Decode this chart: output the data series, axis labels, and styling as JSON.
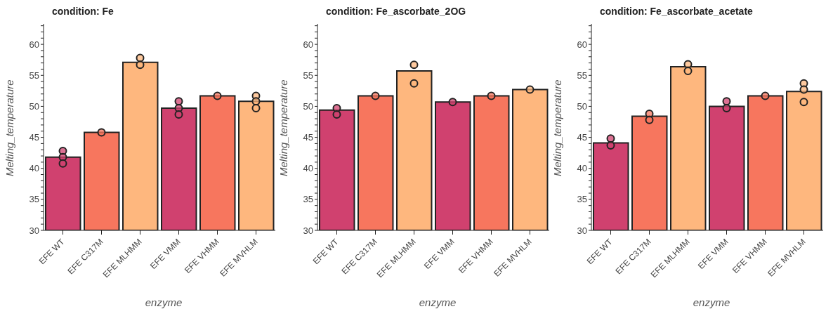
{
  "chart_data": [
    {
      "type": "bar",
      "title": "condition: Fe",
      "xlabel": "enzyme",
      "ylabel": "Melting_temperature",
      "categories": [
        "EFE WT",
        "EFE C317M",
        "EFE MLHMM",
        "EFE VMM",
        "EFE VHMM",
        "EFE MVHLM"
      ],
      "ylim": [
        30,
        63.3
      ],
      "yticks": [
        30,
        {
          "value": 31,
          "label": null
        },
        {
          "value": 32,
          "label": null
        },
        {
          "value": 33,
          "label": null
        },
        {
          "value": 34,
          "label": null
        },
        35,
        {
          "value": 36,
          "label": null
        },
        {
          "value": 37,
          "label": null
        },
        {
          "value": 38,
          "label": null
        },
        {
          "value": 39,
          "label": null
        },
        40,
        {
          "value": 41,
          "label": null
        },
        {
          "value": 42,
          "label": null
        },
        {
          "value": 43,
          "label": null
        },
        {
          "value": 44,
          "label": null
        },
        45,
        {
          "value": 46,
          "label": null
        },
        {
          "value": 47,
          "label": null
        },
        {
          "value": 48,
          "label": null
        },
        {
          "value": 49,
          "label": null
        },
        50,
        {
          "value": 51,
          "label": null
        },
        {
          "value": 52,
          "label": null
        },
        {
          "value": 53,
          "label": null
        },
        {
          "value": 54,
          "label": null
        },
        55,
        {
          "value": 56,
          "label": null
        },
        {
          "value": 57,
          "label": null
        },
        {
          "value": 58,
          "label": null
        },
        {
          "value": 59,
          "label": null
        },
        60,
        {
          "value": 61,
          "label": null
        },
        {
          "value": 62,
          "label": null
        },
        {
          "value": 63,
          "label": null
        }
      ],
      "series": [
        {
          "values": [
            41.8,
            45.8,
            57.1,
            49.7,
            51.7,
            50.8
          ],
          "colors": [
            "#d0416f",
            "#f7765e",
            "#feb77e",
            "#d0416f",
            "#f7765e",
            "#feb77e"
          ]
        },
        {
          "type": "scatter",
          "x": [
            "EFE WT",
            "EFE WT",
            "EFE WT",
            "EFE C317M",
            "EFE MLHMM",
            "EFE MLHMM",
            "EFE VMM",
            "EFE VMM",
            "EFE VMM",
            "EFE VHMM",
            "EFE MVHLM",
            "EFE MVHLM",
            "EFE MVHLM"
          ],
          "values": [
            42.8,
            41.8,
            40.8,
            45.8,
            57.8,
            56.7,
            50.8,
            49.7,
            48.7,
            51.7,
            51.7,
            50.8,
            49.7
          ],
          "colors": [
            "#d0416f",
            "#d0416f",
            "#d0416f",
            "#f7765e",
            "#feb77e",
            "#feb77e",
            "#d0416f",
            "#d0416f",
            "#d0416f",
            "#f7765e",
            "#feb77e",
            "#feb77e",
            "#feb77e"
          ]
        }
      ]
    },
    {
      "type": "bar",
      "title": "condition: Fe_ascorbate_2OG",
      "xlabel": "enzyme",
      "ylabel": "Melting_temperature",
      "categories": [
        "EFE WT",
        "EFE C317M",
        "EFE MLHMM",
        "EFE VMM",
        "EFE VHMM",
        "EFE MVHLM"
      ],
      "ylim": [
        30,
        63.3
      ],
      "yticks": [
        30,
        {
          "value": 31,
          "label": null
        },
        {
          "value": 32,
          "label": null
        },
        {
          "value": 33,
          "label": null
        },
        {
          "value": 34,
          "label": null
        },
        35,
        {
          "value": 36,
          "label": null
        },
        {
          "value": 37,
          "label": null
        },
        {
          "value": 38,
          "label": null
        },
        {
          "value": 39,
          "label": null
        },
        40,
        {
          "value": 41,
          "label": null
        },
        {
          "value": 42,
          "label": null
        },
        {
          "value": 43,
          "label": null
        },
        {
          "value": 44,
          "label": null
        },
        45,
        {
          "value": 46,
          "label": null
        },
        {
          "value": 47,
          "label": null
        },
        {
          "value": 48,
          "label": null
        },
        {
          "value": 49,
          "label": null
        },
        50,
        {
          "value": 51,
          "label": null
        },
        {
          "value": 52,
          "label": null
        },
        {
          "value": 53,
          "label": null
        },
        {
          "value": 54,
          "label": null
        },
        55,
        {
          "value": 56,
          "label": null
        },
        {
          "value": 57,
          "label": null
        },
        {
          "value": 58,
          "label": null
        },
        {
          "value": 59,
          "label": null
        },
        60,
        {
          "value": 61,
          "label": null
        },
        {
          "value": 62,
          "label": null
        },
        {
          "value": 63,
          "label": null
        }
      ],
      "series": [
        {
          "values": [
            49.4,
            51.7,
            55.7,
            50.7,
            51.7,
            52.7
          ],
          "colors": [
            "#d0416f",
            "#f7765e",
            "#feb77e",
            "#d0416f",
            "#f7765e",
            "#feb77e"
          ]
        },
        {
          "type": "scatter",
          "x": [
            "EFE WT",
            "EFE WT",
            "EFE C317M",
            "EFE MLHMM",
            "EFE MLHMM",
            "EFE VMM",
            "EFE VHMM",
            "EFE MVHLM"
          ],
          "values": [
            49.7,
            48.7,
            51.7,
            56.7,
            53.7,
            50.7,
            51.7,
            52.7
          ],
          "colors": [
            "#d0416f",
            "#d0416f",
            "#f7765e",
            "#feb77e",
            "#feb77e",
            "#d0416f",
            "#f7765e",
            "#feb77e"
          ]
        }
      ]
    },
    {
      "type": "bar",
      "title": "condition: Fe_ascorbate_acetate",
      "xlabel": "enzyme",
      "ylabel": "Melting_temperature",
      "categories": [
        "EFE WT",
        "EFE C317M",
        "EFE MLHMM",
        "EFE VMM",
        "EFE VHMM",
        "EFE MVHLM"
      ],
      "ylim": [
        30,
        63.3
      ],
      "yticks": [
        30,
        {
          "value": 31,
          "label": null
        },
        {
          "value": 32,
          "label": null
        },
        {
          "value": 33,
          "label": null
        },
        {
          "value": 34,
          "label": null
        },
        35,
        {
          "value": 36,
          "label": null
        },
        {
          "value": 37,
          "label": null
        },
        {
          "value": 38,
          "label": null
        },
        {
          "value": 39,
          "label": null
        },
        40,
        {
          "value": 41,
          "label": null
        },
        {
          "value": 42,
          "label": null
        },
        {
          "value": 43,
          "label": null
        },
        {
          "value": 44,
          "label": null
        },
        45,
        {
          "value": 46,
          "label": null
        },
        {
          "value": 47,
          "label": null
        },
        {
          "value": 48,
          "label": null
        },
        {
          "value": 49,
          "label": null
        },
        50,
        {
          "value": 51,
          "label": null
        },
        {
          "value": 52,
          "label": null
        },
        {
          "value": 53,
          "label": null
        },
        {
          "value": 54,
          "label": null
        },
        55,
        {
          "value": 56,
          "label": null
        },
        {
          "value": 57,
          "label": null
        },
        {
          "value": 58,
          "label": null
        },
        {
          "value": 59,
          "label": null
        },
        60,
        {
          "value": 61,
          "label": null
        },
        {
          "value": 62,
          "label": null
        },
        {
          "value": 63,
          "label": null
        }
      ],
      "series": [
        {
          "values": [
            44.1,
            48.4,
            56.4,
            50.0,
            51.7,
            52.4
          ],
          "colors": [
            "#d0416f",
            "#f7765e",
            "#feb77e",
            "#d0416f",
            "#f7765e",
            "#feb77e"
          ]
        },
        {
          "type": "scatter",
          "x": [
            "EFE WT",
            "EFE WT",
            "EFE C317M",
            "EFE C317M",
            "EFE MLHMM",
            "EFE MLHMM",
            "EFE VMM",
            "EFE VMM",
            "EFE VHMM",
            "EFE MVHLM",
            "EFE MVHLM",
            "EFE MVHLM"
          ],
          "values": [
            44.8,
            43.7,
            48.8,
            47.8,
            56.8,
            55.7,
            50.8,
            49.7,
            51.7,
            53.7,
            52.7,
            50.7
          ],
          "colors": [
            "#d0416f",
            "#d0416f",
            "#f7765e",
            "#f7765e",
            "#feb77e",
            "#feb77e",
            "#d0416f",
            "#d0416f",
            "#f7765e",
            "#feb77e",
            "#feb77e",
            "#feb77e"
          ]
        }
      ]
    }
  ]
}
